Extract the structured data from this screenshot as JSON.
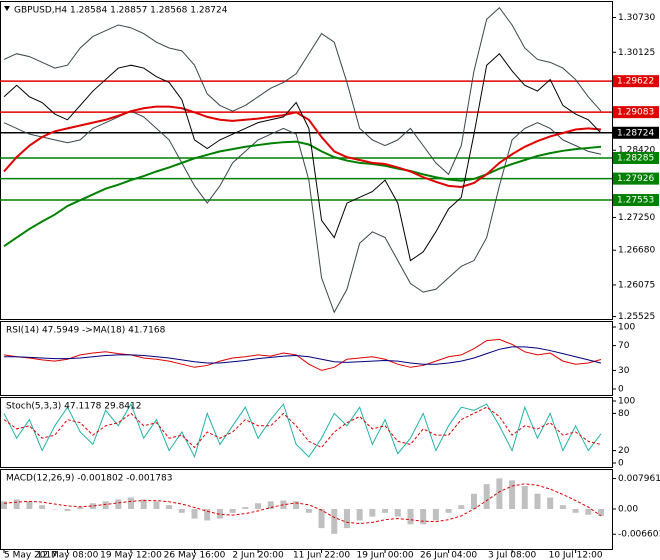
{
  "chart_data": [
    {
      "type": "line",
      "title": "GBPUSD,H4  1.28584 1.28857 1.28568 1.28724",
      "categories": [
        "5 May 2017",
        null,
        null,
        null,
        null,
        "12 May 08:00",
        null,
        null,
        null,
        null,
        "19 May 12:00",
        null,
        null,
        null,
        null,
        "26 May 16:00",
        null,
        null,
        null,
        null,
        "2 Jun 20:00",
        null,
        null,
        null,
        null,
        "11 Jun 22:00",
        null,
        null,
        null,
        null,
        "19 Jun 00:00",
        null,
        null,
        null,
        null,
        "26 Jun 04:00",
        null,
        null,
        null,
        null,
        "3 Jul 08:00",
        null,
        null,
        null,
        null,
        "10 Jul 12:00",
        null,
        null
      ],
      "ylim": [
        1.255,
        1.31
      ],
      "yticks": [
        {
          "value": 1.3073,
          "label": "1.30730"
        },
        1.30125,
        {
          "value": 1.2842,
          "label": "1.28420"
        },
        {
          "value": 1.2725,
          "label": "1.27250"
        },
        {
          "value": 1.2668,
          "label": "1.26680"
        },
        1.26075,
        1.25525
      ],
      "levels": [
        {
          "value": 1.29622,
          "color": "#e00000"
        },
        {
          "value": 1.29083,
          "color": "#e00000"
        },
        {
          "value": 1.28724,
          "color": "#000000"
        },
        {
          "value": 1.28285,
          "color": "#008000"
        },
        {
          "value": 1.27926,
          "color": "#008000"
        },
        {
          "value": 1.27553,
          "color": "#008000"
        }
      ],
      "series": [
        {
          "color": "#37474f",
          "style": "solid",
          "values": [
            1.3,
            1.301,
            1.3005,
            1.2995,
            1.2985,
            1.299,
            1.302,
            1.304,
            1.305,
            1.306,
            1.3055,
            1.3045,
            1.303,
            1.302,
            1.3015,
            1.299,
            1.294,
            1.292,
            1.291,
            1.292,
            1.2935,
            1.295,
            1.296,
            1.2975,
            1.301,
            1.3045,
            1.303,
            1.296,
            1.288,
            1.286,
            1.285,
            1.286,
            1.288,
            1.285,
            1.282,
            1.28,
            1.285,
            1.298,
            1.307,
            1.309,
            1.306,
            1.302,
            1.3,
            1.2995,
            1.2985,
            1.2965,
            1.2935,
            1.291
          ]
        },
        {
          "color": "#37474f",
          "style": "solid",
          "values": [
            1.289,
            1.288,
            1.287,
            1.2865,
            1.286,
            1.2855,
            1.286,
            1.288,
            1.289,
            1.29,
            1.291,
            1.29,
            1.288,
            1.286,
            1.282,
            1.278,
            1.275,
            1.278,
            1.282,
            1.284,
            1.286,
            1.287,
            1.288,
            1.287,
            1.279,
            1.262,
            1.256,
            1.26,
            1.268,
            1.27,
            1.269,
            1.265,
            1.261,
            1.2595,
            1.26,
            1.262,
            1.264,
            1.265,
            1.269,
            1.278,
            1.286,
            1.288,
            1.289,
            1.288,
            1.286,
            1.285,
            1.284,
            1.2835
          ]
        },
        {
          "color": "#008000",
          "style": "solid",
          "values": [
            1.2675,
            1.269,
            1.2705,
            1.2718,
            1.273,
            1.2745,
            1.2755,
            1.2765,
            1.2775,
            1.2782,
            1.279,
            1.2797,
            1.2805,
            1.2812,
            1.282,
            1.2828,
            1.2834,
            1.284,
            1.2844,
            1.2848,
            1.2851,
            1.2854,
            1.2856,
            1.2857,
            1.2852,
            1.284,
            1.283,
            1.2824,
            1.282,
            1.2818,
            1.2815,
            1.281,
            1.2806,
            1.28,
            1.2795,
            1.2791,
            1.2789,
            1.2792,
            1.28,
            1.281,
            1.2818,
            1.2825,
            1.2832,
            1.2837,
            1.2841,
            1.2844,
            1.2846,
            1.2848
          ]
        },
        {
          "color": "#e00000",
          "style": "solid",
          "values": [
            1.2805,
            1.283,
            1.285,
            1.2865,
            1.2875,
            1.288,
            1.2885,
            1.289,
            1.2895,
            1.2902,
            1.291,
            1.2915,
            1.2918,
            1.2918,
            1.2915,
            1.2908,
            1.29,
            1.2895,
            1.2893,
            1.2895,
            1.2897,
            1.29,
            1.2903,
            1.2908,
            1.2895,
            1.2865,
            1.284,
            1.283,
            1.2825,
            1.282,
            1.2818,
            1.2812,
            1.2805,
            1.2795,
            1.2787,
            1.278,
            1.2778,
            1.2785,
            1.28,
            1.282,
            1.2835,
            1.2848,
            1.2858,
            1.2866,
            1.2872,
            1.2878,
            1.288,
            1.2878
          ]
        },
        {
          "color": "#000000",
          "style": "solid",
          "values": [
            1.2935,
            1.2955,
            1.2935,
            1.2925,
            1.2905,
            1.2895,
            1.292,
            1.2945,
            1.2965,
            1.2985,
            1.299,
            1.2985,
            1.297,
            1.296,
            1.293,
            1.286,
            1.2845,
            1.286,
            1.287,
            1.288,
            1.289,
            1.2895,
            1.29,
            1.2925,
            1.288,
            1.272,
            1.269,
            1.275,
            1.276,
            1.277,
            1.279,
            1.275,
            1.265,
            1.2665,
            1.27,
            1.274,
            1.276,
            1.287,
            1.299,
            1.301,
            1.298,
            1.2955,
            1.2945,
            1.2965,
            1.292,
            1.2905,
            1.2895,
            1.2872
          ]
        }
      ]
    },
    {
      "type": "line",
      "title": "RSI(14) 47.5949 ->MA(18) 41.7168",
      "ylim": [
        0,
        100
      ],
      "yticks": [
        100,
        70,
        30,
        0
      ],
      "series": [
        {
          "color": "#e00000",
          "style": "solid",
          "values": [
            55,
            52,
            50,
            47,
            45,
            48,
            55,
            58,
            60,
            57,
            55,
            50,
            48,
            45,
            40,
            35,
            38,
            45,
            50,
            52,
            55,
            53,
            58,
            55,
            40,
            30,
            35,
            48,
            50,
            52,
            48,
            40,
            35,
            38,
            45,
            52,
            55,
            65,
            78,
            80,
            72,
            60,
            55,
            58,
            45,
            40,
            42,
            47.5949
          ]
        },
        {
          "color": "#000080",
          "style": "solid",
          "values": [
            52,
            52,
            51,
            50,
            49,
            49,
            50,
            52,
            54,
            55,
            55,
            54,
            52,
            50,
            47,
            44,
            42,
            42,
            44,
            46,
            49,
            51,
            53,
            54,
            52,
            48,
            44,
            43,
            44,
            45,
            46,
            45,
            42,
            40,
            40,
            42,
            45,
            50,
            57,
            64,
            68,
            68,
            66,
            62,
            57,
            52,
            47,
            41.7168
          ]
        }
      ]
    },
    {
      "type": "line",
      "title": "Stoch(5,3,3) 47.1178 29.8412",
      "ylim": [
        0,
        100
      ],
      "yticks": [
        100,
        80,
        20,
        0
      ],
      "series": [
        {
          "color": "#20b2aa",
          "style": "solid",
          "values": [
            80,
            40,
            70,
            20,
            60,
            90,
            50,
            30,
            85,
            60,
            95,
            40,
            70,
            20,
            50,
            10,
            80,
            30,
            60,
            90,
            40,
            70,
            95,
            30,
            10,
            40,
            80,
            60,
            90,
            30,
            70,
            15,
            40,
            80,
            20,
            60,
            90,
            85,
            95,
            60,
            20,
            90,
            40,
            80,
            20,
            60,
            20,
            47.1178
          ]
        },
        {
          "color": "#e00000",
          "style": "dashed",
          "values": [
            70,
            55,
            60,
            40,
            45,
            70,
            65,
            45,
            60,
            65,
            80,
            60,
            65,
            40,
            45,
            25,
            50,
            40,
            50,
            70,
            60,
            60,
            80,
            60,
            35,
            25,
            50,
            65,
            75,
            55,
            60,
            35,
            30,
            55,
            45,
            45,
            70,
            80,
            90,
            75,
            45,
            60,
            55,
            65,
            45,
            50,
            35,
            29.8412
          ]
        }
      ]
    },
    {
      "type": "bar",
      "title": "MACD(12,26,9) -0.001802 -0.001783",
      "ylim": [
        -0.0102,
        0.0102
      ],
      "yticks": [
        0.007961,
        {
          "value": 0,
          "label": "0.00"
        },
        -0.006601
      ],
      "series": [
        {
          "color": "#c0c0c0",
          "style": "bar",
          "values": [
            0.002,
            0.0025,
            0.002,
            0.001,
            0,
            -0.0005,
            0.0005,
            0.0015,
            0.002,
            0.0025,
            0.003,
            0.0025,
            0.002,
            0.001,
            -0.001,
            -0.0025,
            -0.003,
            -0.0025,
            -0.001,
            0.0005,
            0.0015,
            0.002,
            0.0022,
            0.002,
            -0.001,
            -0.005,
            -0.0065,
            -0.005,
            -0.003,
            -0.002,
            -0.001,
            -0.002,
            -0.004,
            -0.004,
            -0.003,
            -0.001,
            0.001,
            0.004,
            0.0065,
            0.008,
            0.0075,
            0.006,
            0.004,
            0.003,
            0.001,
            -0.001,
            -0.0015,
            -0.001802
          ]
        },
        {
          "color": "#e00000",
          "style": "dashed",
          "values": [
            0.0015,
            0.0018,
            0.002,
            0.0018,
            0.0013,
            0.0008,
            0.0006,
            0.0008,
            0.0012,
            0.0016,
            0.002,
            0.0022,
            0.0022,
            0.0019,
            0.0013,
            0.0004,
            -0.0006,
            -0.0014,
            -0.0016,
            -0.0012,
            -0.0005,
            0.0004,
            0.0011,
            0.0016,
            0.0011,
            -0.0003,
            -0.0022,
            -0.0035,
            -0.0038,
            -0.0035,
            -0.0028,
            -0.0025,
            -0.0028,
            -0.0032,
            -0.0033,
            -0.0028,
            -0.0018,
            0,
            0.0022,
            0.0045,
            0.006,
            0.0066,
            0.0062,
            0.0052,
            0.0038,
            0.0022,
            0.0005,
            -0.001783
          ]
        }
      ]
    }
  ]
}
